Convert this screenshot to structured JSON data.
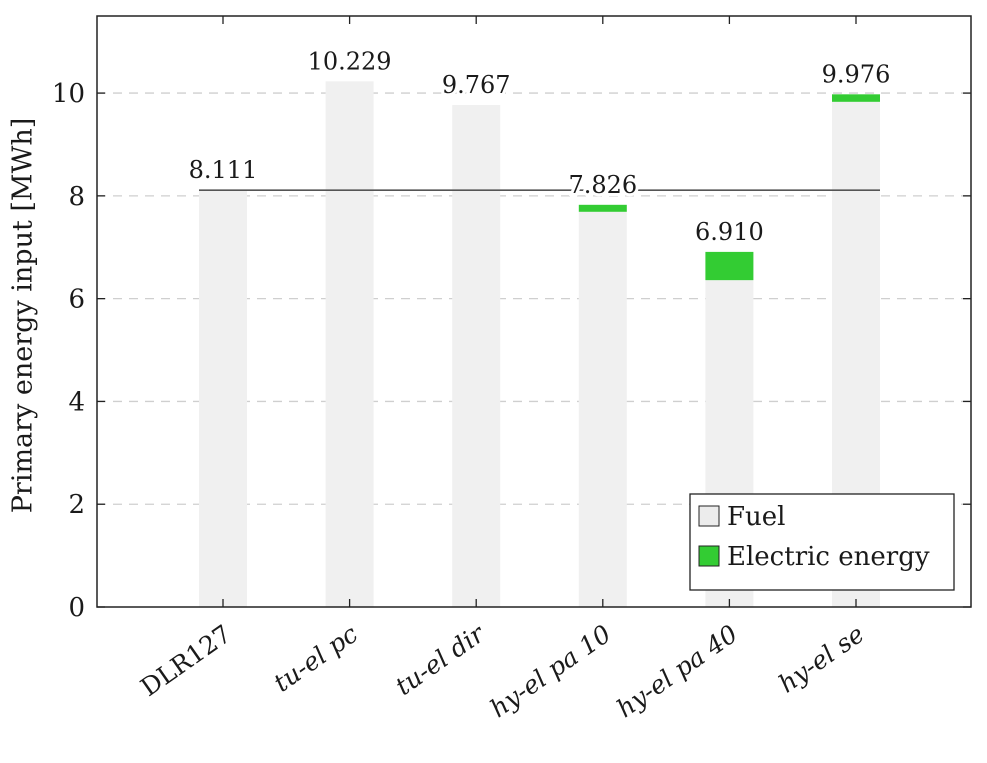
{
  "chart_data": {
    "type": "bar",
    "stacked": true,
    "categories": [
      "DLR127",
      "tu-el pc",
      "tu-el dir",
      "hy-el pa 10",
      "hy-el pa 40",
      "hy-el se"
    ],
    "category_styles": [
      "normal",
      "italic",
      "italic",
      "italic",
      "italic",
      "italic"
    ],
    "series": [
      {
        "name": "Fuel",
        "values": [
          8.111,
          10.229,
          9.767,
          7.69,
          6.36,
          9.83
        ],
        "color": "#f0f0f0"
      },
      {
        "name": "Electric energy",
        "values": [
          0,
          0,
          0,
          0.136,
          0.55,
          0.146
        ],
        "color": "#33cc33"
      }
    ],
    "totals": [
      8.111,
      10.229,
      9.767,
      7.826,
      6.91,
      9.976
    ],
    "total_labels": [
      "8.111",
      "10.229",
      "9.767",
      "7.826",
      "6.910",
      "9.976"
    ],
    "reference_line": {
      "value": 8.111,
      "color": "#555555"
    },
    "ylabel": "Primary energy input [MWh]",
    "xlabel": "",
    "ylim": [
      0,
      11.5
    ],
    "yticks": [
      0,
      2,
      4,
      6,
      8,
      10
    ],
    "grid": "horizontal-dashed",
    "legend_position": "bottom-right"
  }
}
